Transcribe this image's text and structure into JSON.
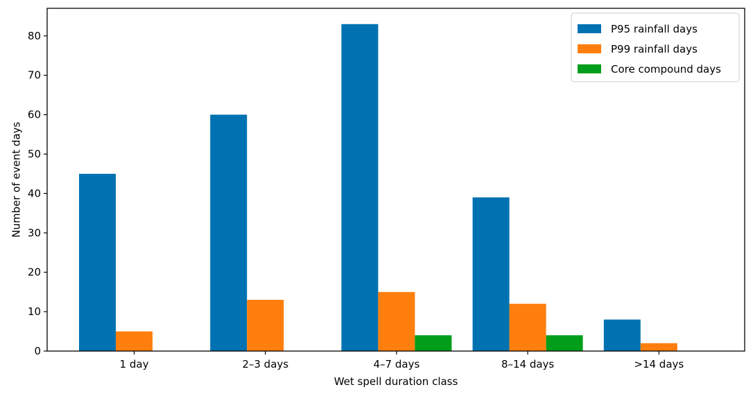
{
  "chart_data": {
    "type": "bar",
    "title": "",
    "xlabel": "Wet spell duration class",
    "ylabel": "Number of event days",
    "categories": [
      "1 day",
      "2–3 days",
      "4–7 days",
      "8–14 days",
      ">14 days"
    ],
    "series": [
      {
        "name": "P95 rainfall days",
        "color": "#0072b2",
        "values": [
          45,
          60,
          83,
          39,
          8
        ]
      },
      {
        "name": "P99 rainfall days",
        "color": "#ff7f0e",
        "values": [
          5,
          13,
          15,
          12,
          2
        ]
      },
      {
        "name": "Core compound days",
        "color": "#009e1a",
        "values": [
          0,
          0,
          4,
          4,
          0
        ]
      }
    ],
    "ylim": [
      0,
      87
    ],
    "yticks": [
      0,
      10,
      20,
      30,
      40,
      50,
      60,
      70,
      80
    ],
    "grid": false,
    "legend_position": "top-right"
  }
}
